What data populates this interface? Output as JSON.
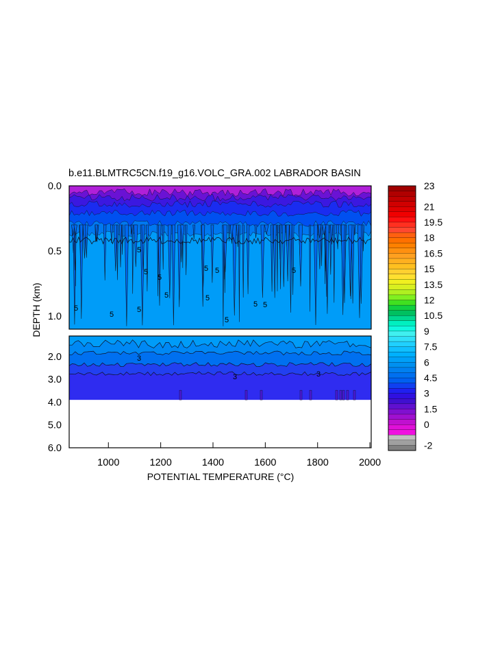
{
  "chart_data": {
    "type": "heatmap",
    "title": "b.e11.BLMTRC5CN.f19_g16.VOLC_GRA.002 LABRADOR BASIN",
    "xlabel": "POTENTIAL TEMPERATURE (°C)",
    "ylabel": "DEPTH (km)",
    "x_range": [
      850,
      2005
    ],
    "x_ticks": [
      1000,
      1200,
      1400,
      1600,
      1800,
      2000
    ],
    "upper_panel": {
      "y_range": [
        0.0,
        1.1
      ],
      "y_ticks": [
        "0.0",
        "0.5",
        "1.0"
      ]
    },
    "lower_panel": {
      "y_range": [
        1.1,
        6.0
      ],
      "y_ticks": [
        "2.0",
        "3.0",
        "4.0",
        "5.0",
        "6.0"
      ],
      "data_bottom_km": 3.9
    },
    "contour_labels": [
      "5",
      "5",
      "5",
      "5",
      "5",
      "5",
      "5",
      "5",
      "5",
      "5",
      "5",
      "5",
      "3",
      "3",
      "3"
    ],
    "colorbar": {
      "labels": [
        "23",
        "21",
        "19.5",
        "18",
        "16.5",
        "15",
        "13.5",
        "12",
        "10.5",
        "9",
        "7.5",
        "6",
        "4.5",
        "3",
        "1.5",
        "0",
        "-2"
      ],
      "levels": [
        23,
        22.5,
        22,
        21.5,
        21,
        20.5,
        20,
        19.5,
        19,
        18.5,
        18,
        17.5,
        17,
        16.5,
        16,
        15.5,
        15,
        14.5,
        14,
        13.5,
        13,
        12.5,
        12,
        11.5,
        11,
        10.5,
        10,
        9.5,
        9,
        8.5,
        8,
        7.5,
        7,
        6.5,
        6,
        5.5,
        5,
        4.5,
        4,
        3.5,
        3,
        2.5,
        2,
        1.5,
        1,
        0.5,
        0,
        -0.5,
        -1,
        -1.5,
        -2
      ],
      "colors": [
        "#a00000",
        "#b00000",
        "#c00000",
        "#d00000",
        "#e00000",
        "#f00000",
        "#ff1010",
        "#ff3020",
        "#ff4830",
        "#ff6010",
        "#ff7000",
        "#ff8000",
        "#ff9010",
        "#ffa020",
        "#ffb020",
        "#ffc020",
        "#ffd030",
        "#ffe030",
        "#f0f020",
        "#d8f020",
        "#b0f020",
        "#80f020",
        "#40e020",
        "#10d040",
        "#00c060",
        "#00d890",
        "#00f0c0",
        "#10f8e0",
        "#40f0f0",
        "#30e0f8",
        "#20d0ff",
        "#10c0ff",
        "#00b0ff",
        "#00a0f8",
        "#0090f0",
        "#0080f0",
        "#0070f0",
        "#0060f0",
        "#1040f0",
        "#2020f0",
        "#3010e0",
        "#4010d0",
        "#6010d0",
        "#8010d0",
        "#a010d0",
        "#c010d0",
        "#e010d8",
        "#f010e0",
        "#c0c0c0",
        "#a0a0a0",
        "#808080"
      ]
    },
    "colors": {
      "upper_fill": "#009cf8",
      "lower_fill": "#2f2cf0",
      "band_mid": "#0070f0",
      "band_top": "#009cf8",
      "surface": "#b020d8"
    }
  }
}
